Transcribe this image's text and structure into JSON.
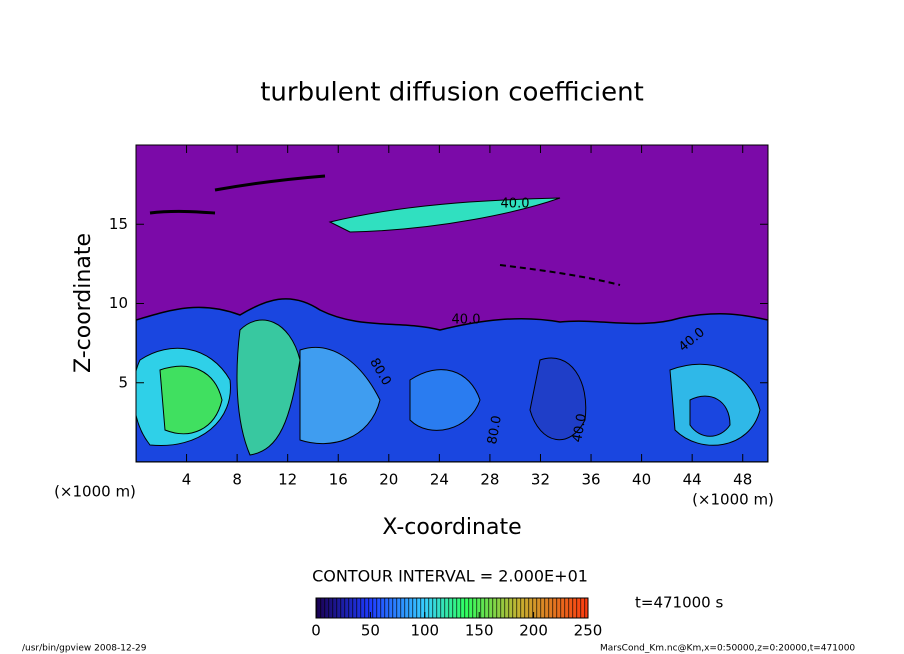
{
  "chart_data": {
    "type": "heatmap",
    "title": "turbulent diffusion coefficient",
    "x_label": "X-coordinate",
    "y_label": "Z-coordinate",
    "x_unit": "(×1000 m)",
    "y_unit": "(×1000 m)",
    "xlim": [
      0,
      50
    ],
    "xticks": [
      4,
      8,
      12,
      16,
      20,
      24,
      28,
      32,
      36,
      40,
      44,
      48
    ],
    "ylim": [
      0,
      20
    ],
    "yticks": [
      5,
      10,
      15
    ],
    "colorbar": {
      "title": "CONTOUR INTERVAL = 2.000E+01",
      "lim": [
        0,
        250
      ],
      "ticks": [
        0,
        50,
        100,
        150,
        200,
        250
      ]
    },
    "time_label": "t=471000 s",
    "contour_labels": [
      "40.0",
      "40.0",
      "80.0",
      "80.0",
      "40.0",
      "40.0"
    ],
    "footer_left": "/usr/bin/gpview  2008-12-29",
    "footer_right": "MarsCond_Km.nc@Km,x=0:50000,z=0:20000,t=471000"
  }
}
